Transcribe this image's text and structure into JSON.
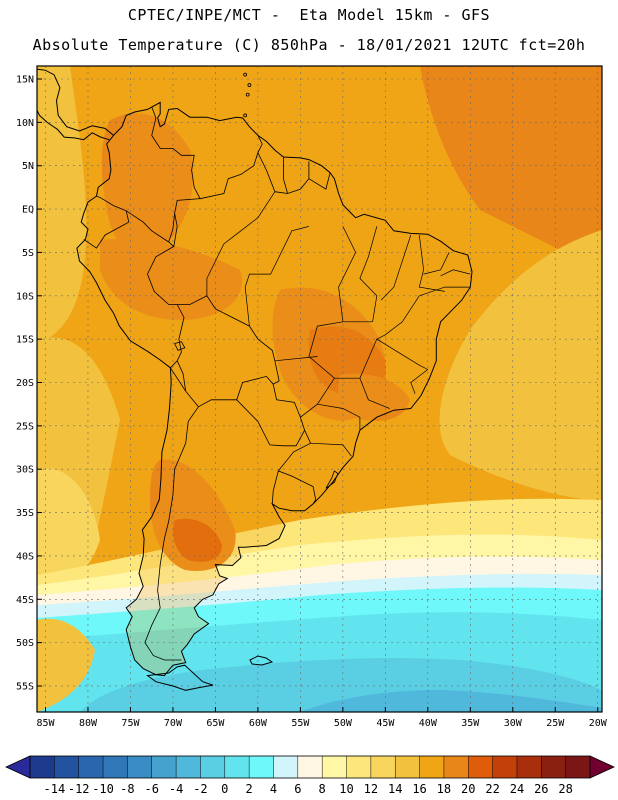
{
  "title": {
    "line1": "CPTEC/INPE/MCT -  Eta Model 15km - GFS",
    "line2": "Absolute Temperature (C) 850hPa - 18/01/2021 12UTC fct=20h"
  },
  "map": {
    "lat_labels": [
      "15N",
      "10N",
      "5N",
      "EQ",
      "5S",
      "10S",
      "15S",
      "20S",
      "25S",
      "30S",
      "35S",
      "40S",
      "45S",
      "50S",
      "55S"
    ],
    "lon_labels": [
      "85W",
      "80W",
      "75W",
      "70W",
      "65W",
      "60W",
      "55W",
      "50W",
      "45W",
      "40W",
      "35W",
      "30W",
      "25W",
      "20W"
    ],
    "lat_values": [
      15,
      10,
      5,
      0,
      -5,
      -10,
      -15,
      -20,
      -25,
      -30,
      -35,
      -40,
      -45,
      -50,
      -55
    ],
    "lon_values": [
      -85,
      -80,
      -75,
      -70,
      -65,
      -60,
      -55,
      -50,
      -45,
      -40,
      -35,
      -30,
      -25,
      -20
    ],
    "lat_range": [
      -58,
      16.5
    ],
    "lon_range": [
      -86,
      -19.5
    ]
  },
  "colorbar": {
    "labels": [
      "-14",
      "-12",
      "-10",
      "-8",
      "-6",
      "-4",
      "-2",
      "0",
      "2",
      "4",
      "6",
      "8",
      "10",
      "12",
      "14",
      "16",
      "18",
      "20",
      "22",
      "24",
      "26",
      "28"
    ],
    "colors": [
      "#1e3a8c",
      "#23529e",
      "#2a66ae",
      "#3077b8",
      "#3a8cc4",
      "#45a2cf",
      "#4fb8db",
      "#5acfe4",
      "#62e4ee",
      "#6ef8fa",
      "#d2f4fb",
      "#fff7e4",
      "#fff6a6",
      "#fde67a",
      "#f8d55d",
      "#f2c23f",
      "#efa516",
      "#e8861a",
      "#de5c0a",
      "#c4400a",
      "#a92e0b",
      "#8a2010",
      "#7a1616"
    ],
    "underflow": "#2a2a9a",
    "overflow": "#700030"
  }
}
